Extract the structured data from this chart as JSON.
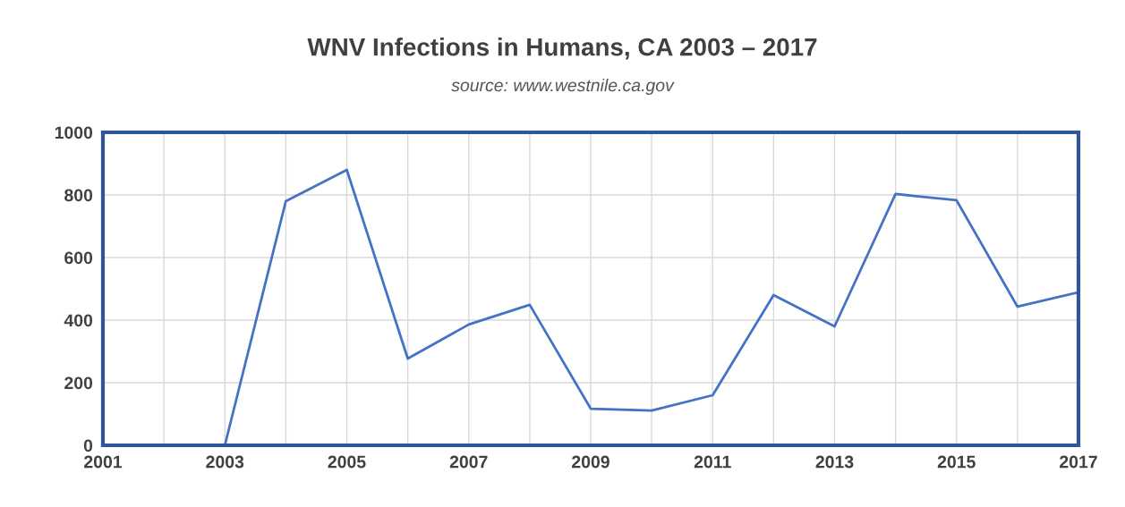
{
  "chart_data": {
    "type": "line",
    "title": "WNV Infections in Humans, CA 2003 – 2017",
    "annotations": [
      "source: www.westnile.ca.gov"
    ],
    "x": [
      2003,
      2004,
      2005,
      2006,
      2007,
      2008,
      2009,
      2010,
      2011,
      2012,
      2013,
      2014,
      2015,
      2016,
      2017
    ],
    "series": [
      {
        "color": "#4472c4",
        "values": [
          0,
          780,
          880,
          277,
          386,
          449,
          117,
          111,
          160,
          480,
          380,
          803,
          783,
          443,
          489
        ]
      }
    ],
    "xlim": [
      2001,
      2017
    ],
    "ylim": [
      0,
      1000
    ],
    "xticks": [
      2001,
      {
        "value": 2002,
        "label": null
      },
      2003,
      {
        "value": 2004,
        "label": null
      },
      2005,
      {
        "value": 2006,
        "label": null
      },
      2007,
      {
        "value": 2008,
        "label": null
      },
      2009,
      {
        "value": 2010,
        "label": null
      },
      2011,
      {
        "value": 2012,
        "label": null
      },
      2013,
      {
        "value": 2014,
        "label": null
      },
      2015,
      {
        "value": 2016,
        "label": null
      },
      2017
    ],
    "yticks": [
      0,
      200,
      400,
      600,
      800,
      1000
    ],
    "grid": true,
    "marker": "none",
    "line_style": "solid"
  }
}
